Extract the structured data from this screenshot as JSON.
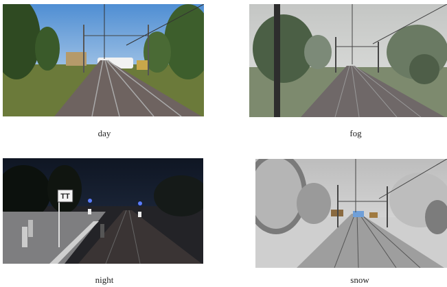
{
  "panels": [
    {
      "caption": "day"
    },
    {
      "caption": "fog"
    },
    {
      "caption": "night",
      "sign": "TT"
    },
    {
      "caption": "snow"
    }
  ]
}
